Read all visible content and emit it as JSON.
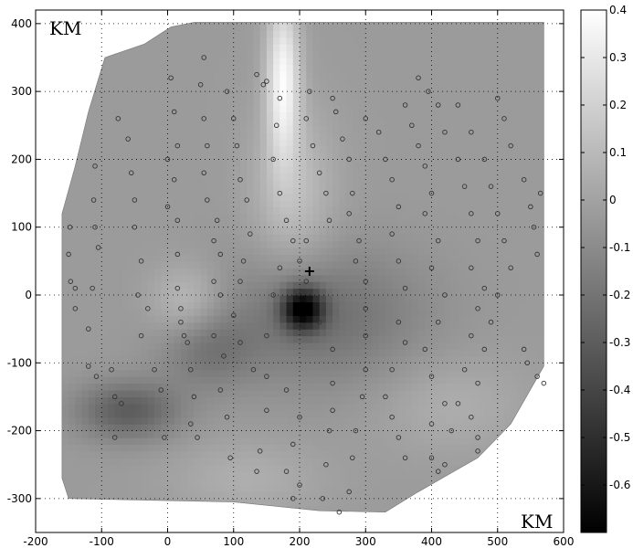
{
  "chart_data": {
    "type": "heatmap",
    "title": "",
    "xlabel": "",
    "ylabel": "",
    "unit_labels": {
      "top_left": "KM",
      "bottom_right": "KM"
    },
    "xlim": [
      -200,
      600
    ],
    "ylim": [
      -350,
      420
    ],
    "x_ticks": [
      -200,
      -100,
      0,
      100,
      200,
      300,
      400,
      500,
      600
    ],
    "y_ticks": [
      -300,
      -200,
      -100,
      0,
      100,
      200,
      300,
      400
    ],
    "grid": "dotted",
    "colorbar": {
      "min": -0.7,
      "max": 0.4,
      "ticks": [
        0.4,
        0.3,
        0.2,
        0.1,
        0,
        -0.1,
        -0.2,
        -0.3,
        -0.4,
        -0.5,
        -0.6
      ],
      "colormap": "gray"
    },
    "field": {
      "background_value": -0.03,
      "features": [
        {
          "x": 205,
          "y": -20,
          "value": -0.62,
          "sx": 22,
          "sy": 22
        },
        {
          "x": 230,
          "y": -30,
          "value": -0.22,
          "sx": 110,
          "sy": 70
        },
        {
          "x": -60,
          "y": -170,
          "value": -0.3,
          "sx": 55,
          "sy": 30
        },
        {
          "x": 60,
          "y": -80,
          "value": -0.18,
          "sx": 50,
          "sy": 40
        },
        {
          "x": 175,
          "y": 320,
          "value": 0.36,
          "sx": 18,
          "sy": 85
        },
        {
          "x": 190,
          "y": 150,
          "value": 0.12,
          "sx": 45,
          "sy": 90
        },
        {
          "x": 30,
          "y": -10,
          "value": 0.12,
          "sx": 40,
          "sy": 40
        },
        {
          "x": 430,
          "y": -160,
          "value": 0.05,
          "sx": 80,
          "sy": 50
        },
        {
          "x": 120,
          "y": -270,
          "value": 0.05,
          "sx": 80,
          "sy": 40
        }
      ]
    },
    "boundary": [
      [
        -95,
        350
      ],
      [
        -35,
        370
      ],
      [
        5,
        395
      ],
      [
        40,
        402
      ],
      [
        235,
        402
      ],
      [
        570,
        402
      ],
      [
        570,
        -105
      ],
      [
        520,
        -190
      ],
      [
        470,
        -240
      ],
      [
        380,
        -290
      ],
      [
        330,
        -320
      ],
      [
        230,
        -318
      ],
      [
        100,
        -305
      ],
      [
        -150,
        -300
      ],
      [
        -160,
        -270
      ],
      [
        -160,
        120
      ],
      [
        -140,
        190
      ],
      [
        -120,
        270
      ]
    ],
    "stations": [
      [
        -140,
        10
      ],
      [
        -148,
        100
      ],
      [
        -150,
        60
      ],
      [
        -147,
        20
      ],
      [
        -140,
        -20
      ],
      [
        -120,
        -105
      ],
      [
        -108,
        -120
      ],
      [
        -110,
        190
      ],
      [
        -105,
        70
      ],
      [
        -112,
        140
      ],
      [
        -110,
        100
      ],
      [
        -114,
        10
      ],
      [
        -120,
        -50
      ],
      [
        -85,
        -110
      ],
      [
        -80,
        -150
      ],
      [
        -80,
        -210
      ],
      [
        -70,
        -160
      ],
      [
        -75,
        260
      ],
      [
        -60,
        230
      ],
      [
        -55,
        180
      ],
      [
        -50,
        140
      ],
      [
        -50,
        100
      ],
      [
        -40,
        50
      ],
      [
        -45,
        0
      ],
      [
        -30,
        -20
      ],
      [
        -40,
        -60
      ],
      [
        -20,
        -110
      ],
      [
        -10,
        -140
      ],
      [
        -5,
        -210
      ],
      [
        5,
        320
      ],
      [
        10,
        270
      ],
      [
        15,
        220
      ],
      [
        0,
        200
      ],
      [
        10,
        170
      ],
      [
        0,
        130
      ],
      [
        15,
        110
      ],
      [
        15,
        60
      ],
      [
        15,
        10
      ],
      [
        20,
        -20
      ],
      [
        20,
        -40
      ],
      [
        25,
        -60
      ],
      [
        30,
        -70
      ],
      [
        35,
        -110
      ],
      [
        40,
        -150
      ],
      [
        35,
        -190
      ],
      [
        45,
        -210
      ],
      [
        55,
        350
      ],
      [
        50,
        310
      ],
      [
        55,
        260
      ],
      [
        60,
        220
      ],
      [
        55,
        180
      ],
      [
        60,
        140
      ],
      [
        75,
        110
      ],
      [
        70,
        80
      ],
      [
        80,
        60
      ],
      [
        70,
        20
      ],
      [
        80,
        0
      ],
      [
        70,
        -60
      ],
      [
        85,
        -90
      ],
      [
        80,
        -140
      ],
      [
        90,
        -180
      ],
      [
        95,
        -240
      ],
      [
        90,
        300
      ],
      [
        100,
        260
      ],
      [
        105,
        220
      ],
      [
        110,
        170
      ],
      [
        120,
        140
      ],
      [
        125,
        90
      ],
      [
        115,
        50
      ],
      [
        110,
        20
      ],
      [
        100,
        -30
      ],
      [
        110,
        -70
      ],
      [
        130,
        -110
      ],
      [
        150,
        -170
      ],
      [
        140,
        -230
      ],
      [
        135,
        -260
      ],
      [
        135,
        325
      ],
      [
        145,
        310
      ],
      [
        150,
        315
      ],
      [
        170,
        290
      ],
      [
        165,
        250
      ],
      [
        160,
        200
      ],
      [
        170,
        150
      ],
      [
        180,
        110
      ],
      [
        190,
        80
      ],
      [
        170,
        40
      ],
      [
        160,
        0
      ],
      [
        150,
        -60
      ],
      [
        150,
        -120
      ],
      [
        180,
        -140
      ],
      [
        200,
        -180
      ],
      [
        190,
        -220
      ],
      [
        180,
        -260
      ],
      [
        190,
        -300
      ],
      [
        200,
        -280
      ],
      [
        215,
        300
      ],
      [
        210,
        260
      ],
      [
        220,
        220
      ],
      [
        230,
        180
      ],
      [
        240,
        150
      ],
      [
        245,
        110
      ],
      [
        210,
        80
      ],
      [
        200,
        50
      ],
      [
        210,
        20
      ],
      [
        230,
        -40
      ],
      [
        250,
        -80
      ],
      [
        250,
        -130
      ],
      [
        250,
        -170
      ],
      [
        245,
        -200
      ],
      [
        240,
        -250
      ],
      [
        235,
        -300
      ],
      [
        250,
        290
      ],
      [
        255,
        270
      ],
      [
        265,
        230
      ],
      [
        275,
        200
      ],
      [
        280,
        150
      ],
      [
        275,
        120
      ],
      [
        290,
        80
      ],
      [
        285,
        50
      ],
      [
        300,
        20
      ],
      [
        300,
        -20
      ],
      [
        300,
        -60
      ],
      [
        300,
        -110
      ],
      [
        295,
        -150
      ],
      [
        285,
        -200
      ],
      [
        280,
        -240
      ],
      [
        275,
        -290
      ],
      [
        260,
        -320
      ],
      [
        300,
        260
      ],
      [
        320,
        240
      ],
      [
        330,
        200
      ],
      [
        340,
        170
      ],
      [
        350,
        130
      ],
      [
        340,
        90
      ],
      [
        350,
        50
      ],
      [
        360,
        10
      ],
      [
        350,
        -40
      ],
      [
        360,
        -70
      ],
      [
        340,
        -110
      ],
      [
        330,
        -150
      ],
      [
        340,
        -180
      ],
      [
        350,
        -210
      ],
      [
        360,
        -240
      ],
      [
        360,
        280
      ],
      [
        370,
        250
      ],
      [
        380,
        220
      ],
      [
        390,
        190
      ],
      [
        400,
        150
      ],
      [
        390,
        120
      ],
      [
        410,
        80
      ],
      [
        400,
        40
      ],
      [
        420,
        0
      ],
      [
        410,
        -40
      ],
      [
        390,
        -80
      ],
      [
        400,
        -120
      ],
      [
        420,
        -160
      ],
      [
        400,
        -190
      ],
      [
        400,
        -240
      ],
      [
        410,
        -260
      ],
      [
        380,
        320
      ],
      [
        395,
        300
      ],
      [
        410,
        280
      ],
      [
        420,
        240
      ],
      [
        440,
        200
      ],
      [
        450,
        160
      ],
      [
        460,
        120
      ],
      [
        470,
        80
      ],
      [
        460,
        40
      ],
      [
        480,
        10
      ],
      [
        470,
        -20
      ],
      [
        460,
        -60
      ],
      [
        450,
        -110
      ],
      [
        440,
        -160
      ],
      [
        430,
        -200
      ],
      [
        420,
        -250
      ],
      [
        440,
        280
      ],
      [
        460,
        240
      ],
      [
        480,
        200
      ],
      [
        490,
        160
      ],
      [
        500,
        120
      ],
      [
        510,
        80
      ],
      [
        520,
        40
      ],
      [
        500,
        0
      ],
      [
        490,
        -40
      ],
      [
        480,
        -80
      ],
      [
        470,
        -130
      ],
      [
        460,
        -180
      ],
      [
        470,
        -210
      ],
      [
        470,
        -230
      ],
      [
        500,
        290
      ],
      [
        510,
        260
      ],
      [
        520,
        220
      ],
      [
        540,
        170
      ],
      [
        550,
        130
      ],
      [
        555,
        100
      ],
      [
        560,
        60
      ],
      [
        565,
        150
      ],
      [
        540,
        -80
      ],
      [
        545,
        -100
      ],
      [
        560,
        -120
      ],
      [
        570,
        -130
      ]
    ],
    "marker": {
      "x": 215,
      "y": 35,
      "symbol": "+"
    }
  },
  "colors": {
    "axis": "#000000",
    "station_stroke": "#333333",
    "colormap_low": "#000000",
    "colormap_high": "#ffffff"
  }
}
